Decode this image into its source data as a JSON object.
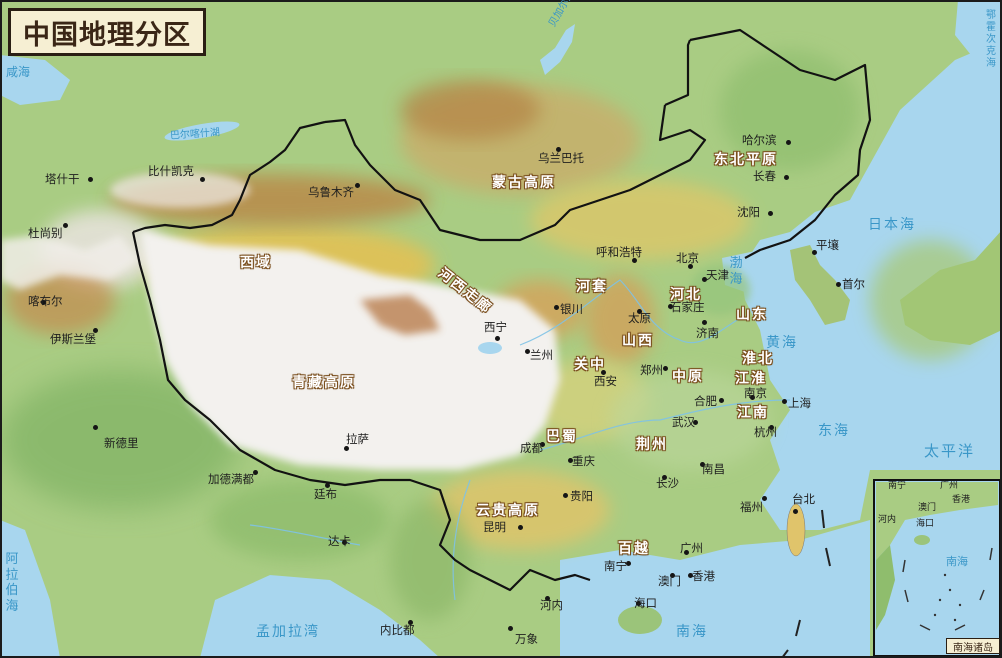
{
  "map": {
    "title": "中国地理分区",
    "inset_caption": "南海诸岛",
    "regions": [
      {
        "id": "region-menggu-gaoyuan",
        "label": "蒙古高原"
      },
      {
        "id": "region-dongbei-pingyuan",
        "label": "东北平原"
      },
      {
        "id": "region-xiyu",
        "label": "西域"
      },
      {
        "id": "region-hexi-zoulang",
        "label": "河西走廊"
      },
      {
        "id": "region-hetao",
        "label": "河套"
      },
      {
        "id": "region-hebei",
        "label": "河北"
      },
      {
        "id": "region-shandong",
        "label": "山东"
      },
      {
        "id": "region-shanxi",
        "label": "山西"
      },
      {
        "id": "region-guanzhong",
        "label": "关中"
      },
      {
        "id": "region-zhongyuan",
        "label": "中原"
      },
      {
        "id": "region-huaibei",
        "label": "淮北"
      },
      {
        "id": "region-jianghuai",
        "label": "江淮"
      },
      {
        "id": "region-jiangnan",
        "label": "江南"
      },
      {
        "id": "region-qingzang-gaoyuan",
        "label": "青藏高原"
      },
      {
        "id": "region-bashu",
        "label": "巴蜀"
      },
      {
        "id": "region-jingchu",
        "label": "荆州"
      },
      {
        "id": "region-yungui-gaoyuan",
        "label": "云贵高原"
      },
      {
        "id": "region-baiyue",
        "label": "百越"
      }
    ],
    "cities": [
      "哈尔滨",
      "长春",
      "沈阳",
      "平壤",
      "首尔",
      "呼和浩特",
      "北京",
      "天津",
      "石家庄",
      "太原",
      "济南",
      "银川",
      "西宁",
      "兰州",
      "西安",
      "郑州",
      "南京",
      "合肥",
      "上海",
      "武汉",
      "杭州",
      "南昌",
      "长沙",
      "成都",
      "重庆",
      "贵阳",
      "昆明",
      "南宁",
      "广州",
      "澳门",
      "香港",
      "海口",
      "福州",
      "台北",
      "河内",
      "万象",
      "内比都",
      "达卡",
      "加德满都",
      "廷布",
      "拉萨",
      "新德里",
      "伊斯兰堡",
      "喀布尔",
      "杜尚别",
      "塔什干",
      "比什凯克",
      "乌鲁木齐",
      "乌兰巴托"
    ],
    "waters": [
      "咸海",
      "巴尔喀什湖",
      "贝加尔湖",
      "鄂霍次克海",
      "日本海",
      "渤海",
      "黄海",
      "东海",
      "太平洋",
      "南海",
      "孟加拉湾",
      "阿拉伯海"
    ],
    "inset_labels": [
      "南宁",
      "广州",
      "香港",
      "澳门",
      "河内",
      "海口",
      "南海"
    ]
  }
}
